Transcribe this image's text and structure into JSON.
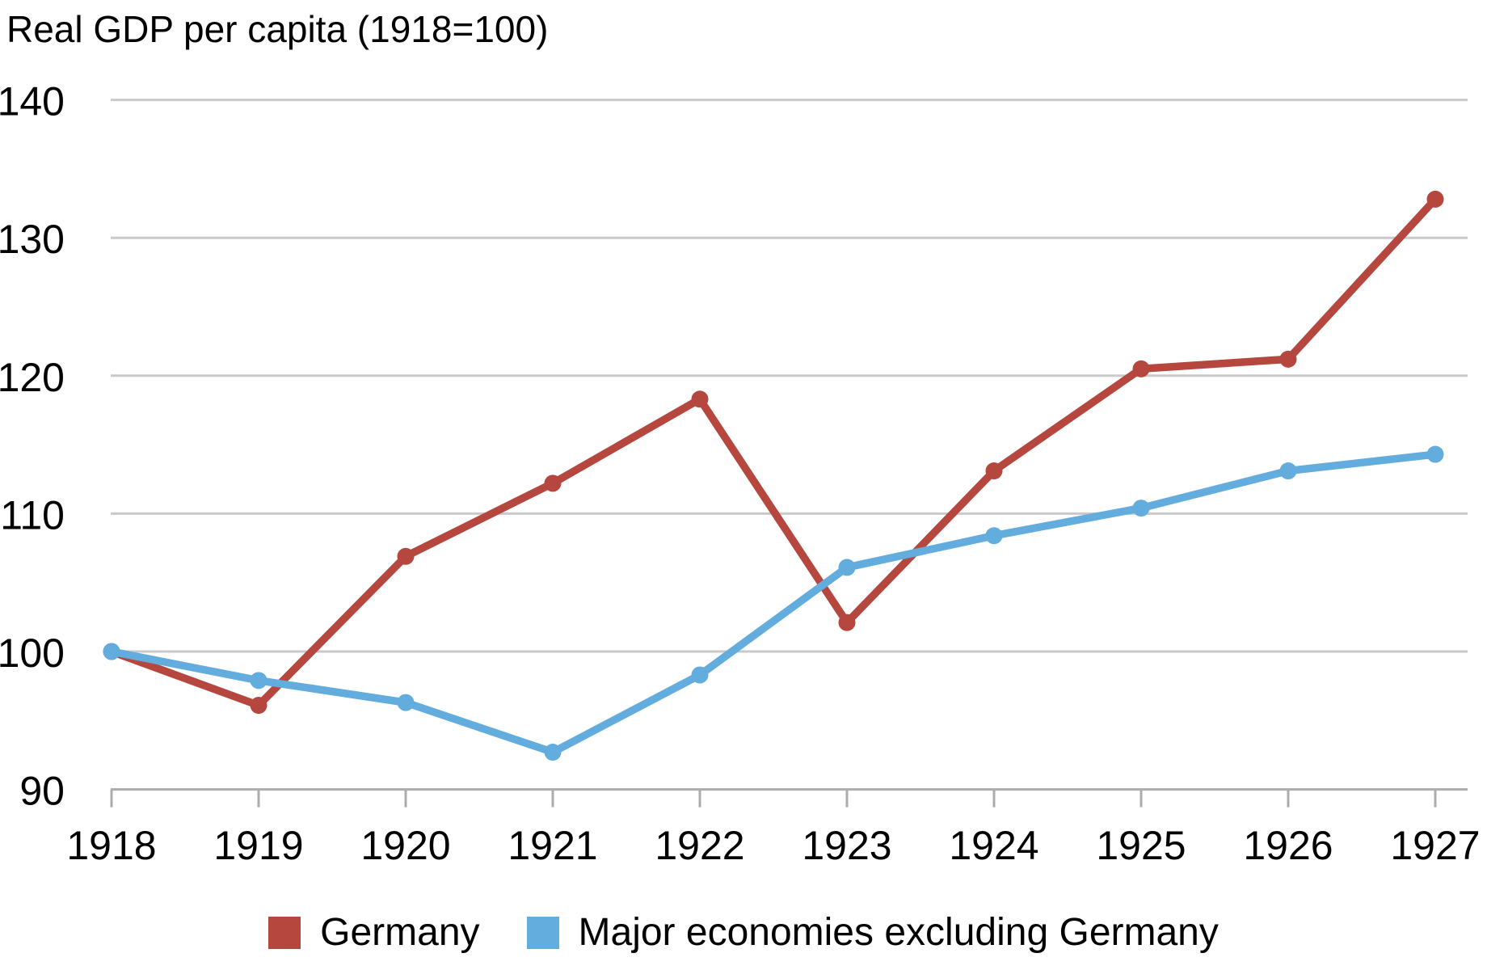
{
  "chart_data": {
    "type": "line",
    "title": "Real GDP per capita (1918=100)",
    "categories": [
      "1918",
      "1919",
      "1920",
      "1921",
      "1922",
      "1923",
      "1924",
      "1925",
      "1926",
      "1927"
    ],
    "series": [
      {
        "name": "Germany",
        "color": "#B5473F",
        "values": [
          100,
          96.1,
          106.9,
          112.2,
          118.3,
          102.1,
          113.1,
          120.5,
          121.2,
          132.8
        ]
      },
      {
        "name": "Major economies excluding Germany",
        "color": "#62ACDE",
        "values": [
          100,
          97.9,
          96.3,
          92.7,
          98.3,
          106.1,
          108.4,
          110.4,
          113.1,
          114.3
        ]
      }
    ],
    "ylim": [
      90,
      140
    ],
    "y_ticks": [
      90,
      100,
      110,
      120,
      130,
      140
    ],
    "xlabel": "",
    "ylabel": "",
    "grid": "horizontal",
    "legend_position": "bottom",
    "gridline_color": "#C9C9C9",
    "axis_color": "#ACACAC",
    "text_color": "#000000"
  }
}
